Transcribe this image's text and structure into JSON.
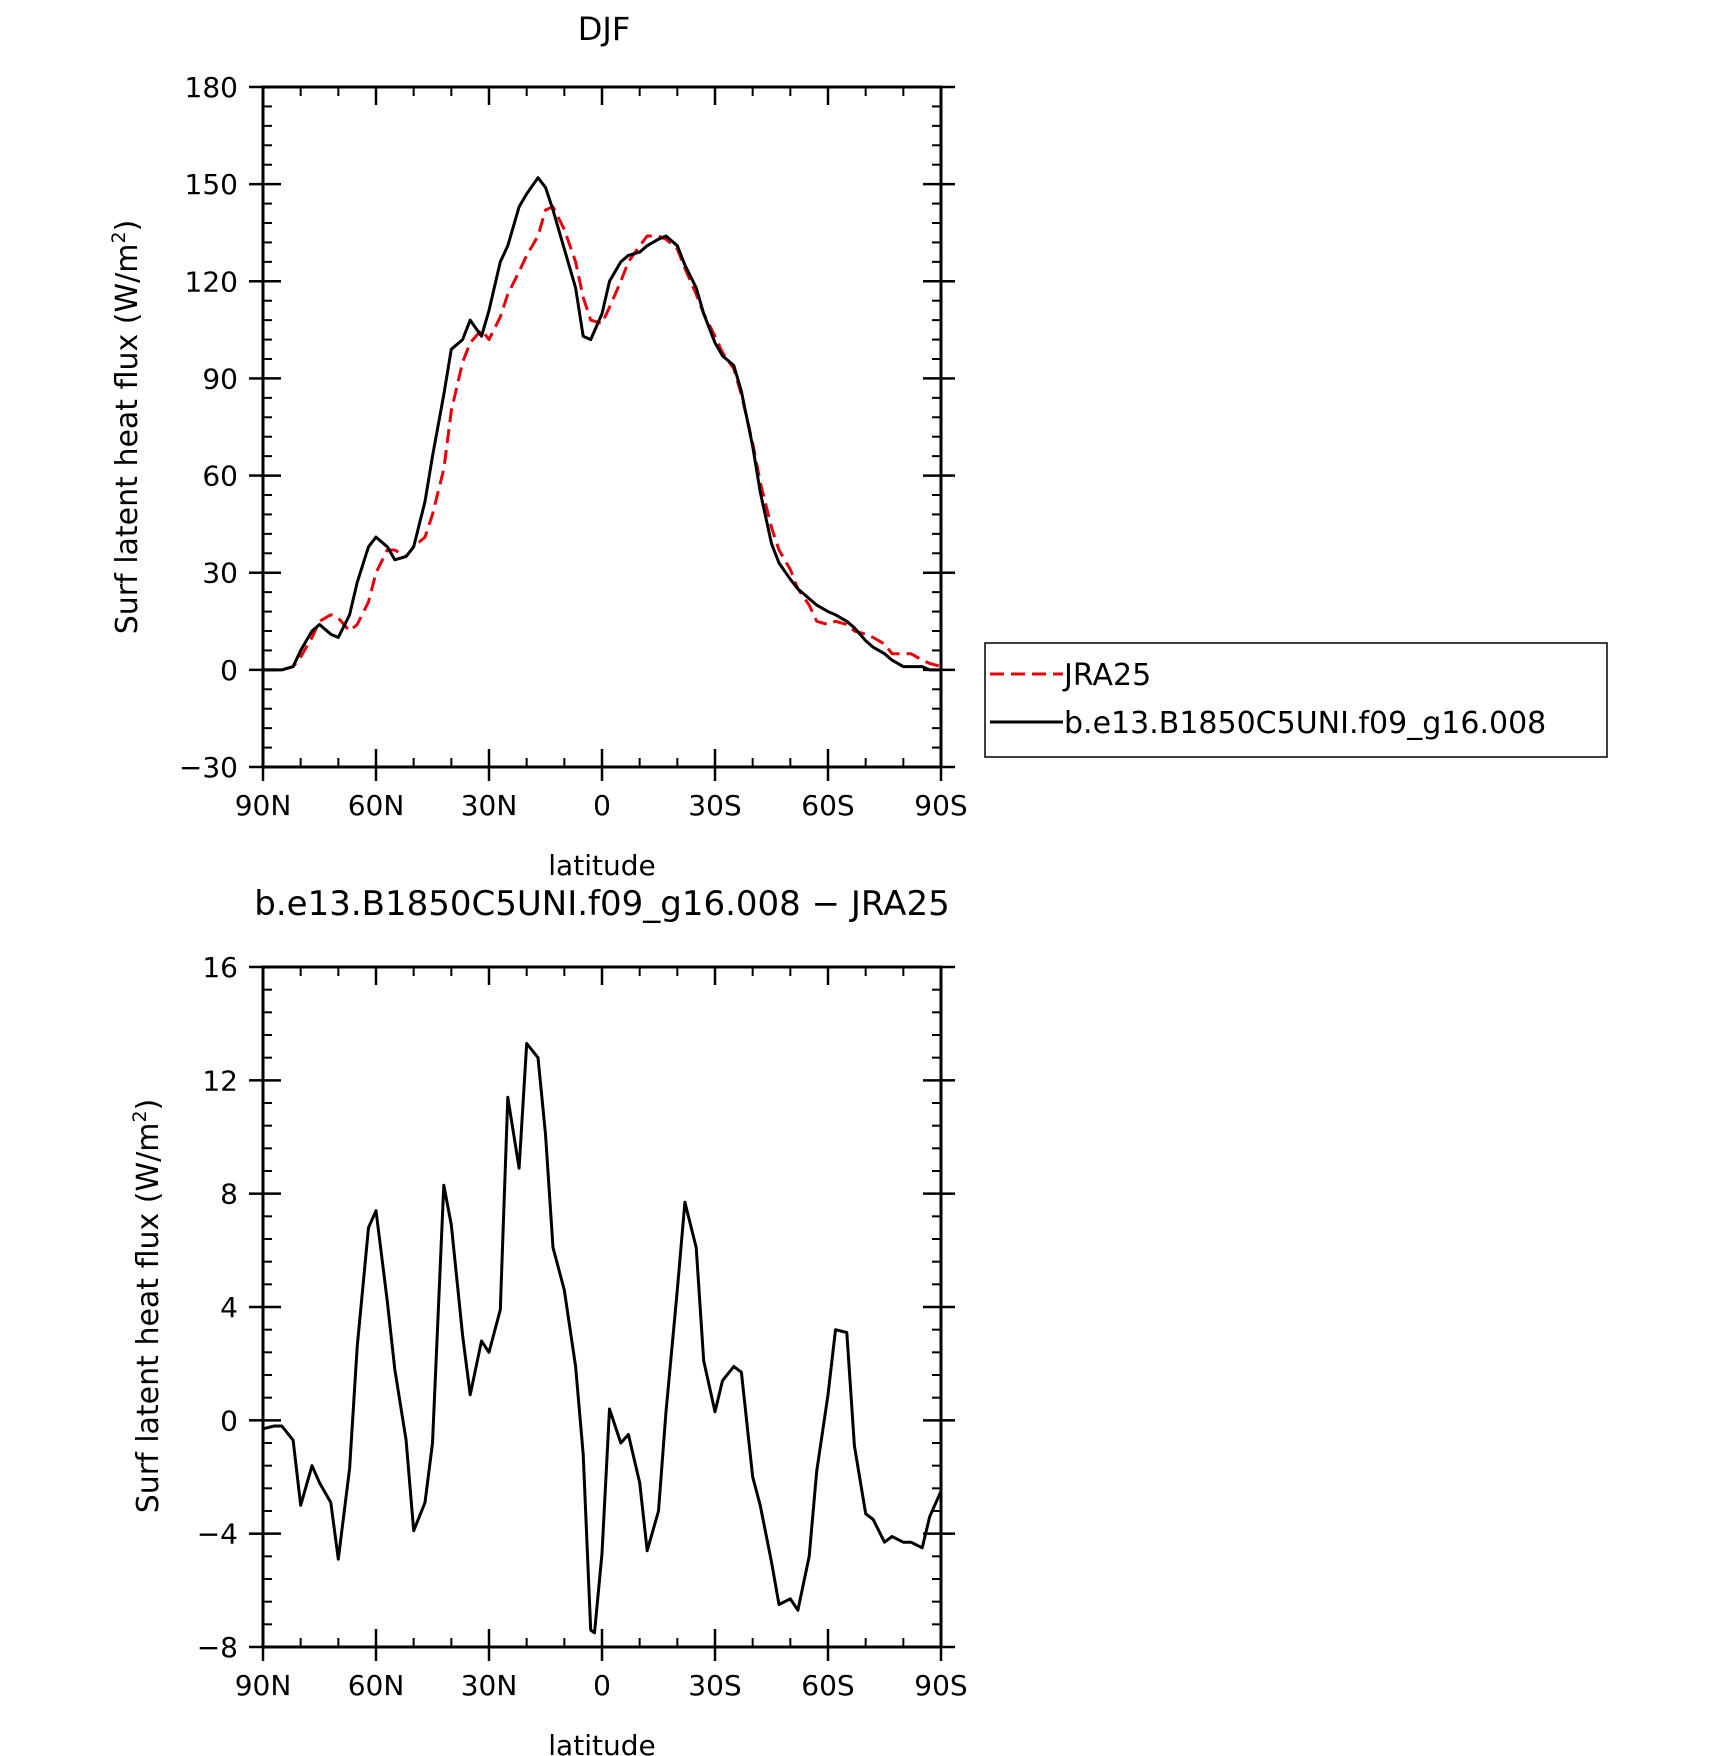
{
  "chart_data": [
    {
      "type": "line",
      "title": "DJF",
      "xlabel": "latitude",
      "ylabel": "Surf latent heat flux (W/m",
      "ylabel_sup": "2",
      "ylabel_close": ")",
      "xlim": [
        -90,
        90
      ],
      "ylim": [
        -30,
        180
      ],
      "x_direction": "north-to-south (left = 90N, right = 90S)",
      "xticks": [
        -90,
        -60,
        -30,
        0,
        30,
        60,
        90
      ],
      "xtick_labels": [
        "90N",
        "60N",
        "30N",
        "0",
        "30S",
        "60S",
        "90S"
      ],
      "yticks": [
        -30,
        0,
        30,
        60,
        90,
        120,
        150,
        180
      ],
      "ytick_labels": [
        "−30",
        "0",
        "30",
        "60",
        "90",
        "120",
        "150",
        "180"
      ],
      "grid": false,
      "legend_position": "right of plot, outside",
      "series": [
        {
          "name": "JRA25",
          "color": "#e8000b",
          "style": "dashed",
          "x": [
            -90,
            -87,
            -85,
            -82,
            -80,
            -77,
            -75,
            -72,
            -70,
            -67,
            -65,
            -62,
            -60,
            -57,
            -55,
            -52,
            -50,
            -47,
            -45,
            -42,
            -40,
            -37,
            -35,
            -32,
            -30,
            -27,
            -25,
            -22,
            -20,
            -17,
            -15,
            -13,
            -10,
            -7,
            -5,
            -3,
            0,
            2,
            5,
            7,
            10,
            12,
            15,
            17,
            20,
            22,
            25,
            27,
            30,
            32,
            35,
            37,
            40,
            42,
            45,
            47,
            50,
            52,
            55,
            57,
            60,
            62,
            65,
            67,
            70,
            72,
            75,
            77,
            80,
            82,
            85,
            87,
            90
          ],
          "y": [
            0,
            0,
            0,
            1,
            4,
            10,
            15,
            17,
            16,
            12,
            14,
            21,
            30,
            37,
            37,
            35,
            38,
            41,
            48,
            62,
            80,
            95,
            101,
            105,
            102,
            109,
            116,
            123,
            128,
            134,
            142,
            143,
            136,
            126,
            115,
            108,
            107,
            112,
            120,
            126,
            131,
            134,
            134,
            133,
            130,
            124,
            116,
            110,
            103,
            98,
            93,
            85,
            70,
            58,
            44,
            37,
            31,
            25,
            20,
            15,
            14,
            15,
            14,
            12,
            11,
            10,
            8,
            5,
            5,
            5,
            3,
            2,
            1
          ]
        },
        {
          "name": "b.e13.B1850C5UNI.f09_g16.008",
          "color": "#000000",
          "style": "solid",
          "x": [
            -90,
            -87,
            -85,
            -82,
            -80,
            -77,
            -75,
            -72,
            -70,
            -67,
            -65,
            -62,
            -60,
            -57,
            -55,
            -52,
            -50,
            -47,
            -45,
            -42,
            -40,
            -37,
            -35,
            -32,
            -30,
            -27,
            -25,
            -22,
            -20,
            -17,
            -15,
            -13,
            -10,
            -7,
            -5,
            -3,
            0,
            2,
            5,
            7,
            10,
            12,
            15,
            17,
            20,
            22,
            25,
            27,
            30,
            32,
            35,
            37,
            40,
            42,
            45,
            47,
            50,
            52,
            55,
            57,
            60,
            62,
            65,
            67,
            70,
            72,
            75,
            77,
            80,
            82,
            85,
            87,
            90
          ],
          "y": [
            0,
            0,
            0,
            1,
            6,
            12,
            14,
            11,
            10,
            17,
            27,
            38,
            41,
            38,
            34,
            35,
            38,
            52,
            66,
            85,
            99,
            102,
            108,
            103,
            111,
            126,
            131,
            143,
            147,
            152,
            149,
            142,
            130,
            118,
            103,
            102,
            110,
            120,
            126,
            128,
            129,
            131,
            133,
            134,
            131,
            125,
            118,
            110,
            101,
            97,
            94,
            86,
            69,
            55,
            39,
            33,
            28,
            25,
            22,
            20,
            18,
            17,
            15,
            13,
            9,
            7,
            5,
            3,
            1,
            1,
            1,
            0,
            0
          ]
        }
      ]
    },
    {
      "type": "line",
      "title": "b.e13.B1850C5UNI.f09_g16.008 − JRA25",
      "xlabel": "latitude",
      "ylabel": "Surf latent heat flux (W/m",
      "ylabel_sup": "2",
      "ylabel_close": ")",
      "xlim": [
        -90,
        90
      ],
      "ylim": [
        -8,
        16
      ],
      "x_direction": "north-to-south (left = 90N, right = 90S)",
      "xticks": [
        -90,
        -60,
        -30,
        0,
        30,
        60,
        90
      ],
      "xtick_labels": [
        "90N",
        "60N",
        "30N",
        "0",
        "30S",
        "60S",
        "90S"
      ],
      "yticks": [
        -8,
        -4,
        0,
        4,
        8,
        12,
        16
      ],
      "ytick_labels": [
        "−8",
        "−4",
        "0",
        "4",
        "8",
        "12",
        "16"
      ],
      "grid": false,
      "series": [
        {
          "color": "#000000",
          "style": "solid",
          "x": [
            -90,
            -87,
            -85,
            -82,
            -80,
            -77,
            -75,
            -72,
            -70,
            -67,
            -65,
            -62,
            -60,
            -57,
            -55,
            -52,
            -50,
            -47,
            -45,
            -42,
            -40,
            -37,
            -35,
            -32,
            -30,
            -27,
            -25,
            -22,
            -20,
            -17,
            -15,
            -13,
            -10,
            -7,
            -5,
            -3,
            -2,
            0,
            2,
            5,
            7,
            10,
            12,
            15,
            17,
            20,
            22,
            25,
            27,
            30,
            32,
            35,
            37,
            40,
            42,
            45,
            47,
            50,
            52,
            55,
            57,
            60,
            62,
            65,
            67,
            70,
            72,
            75,
            77,
            80,
            82,
            85,
            87,
            90
          ],
          "y": [
            -0.3,
            -0.2,
            -0.2,
            -0.7,
            -3.0,
            -1.6,
            -2.2,
            -2.9,
            -4.9,
            -1.7,
            2.6,
            6.8,
            7.4,
            4.2,
            1.8,
            -0.7,
            -3.9,
            -2.9,
            -0.8,
            8.3,
            6.9,
            3.0,
            0.9,
            2.8,
            2.4,
            3.9,
            11.4,
            8.9,
            13.3,
            12.8,
            10.1,
            6.1,
            4.6,
            1.9,
            -1.2,
            -7.4,
            -7.5,
            -4.7,
            0.4,
            -0.8,
            -0.5,
            -2.2,
            -4.6,
            -3.2,
            0.3,
            4.6,
            7.7,
            6.1,
            2.1,
            0.3,
            1.4,
            1.9,
            1.7,
            -2.0,
            -3.0,
            -5.0,
            -6.5,
            -6.3,
            -6.7,
            -4.8,
            -1.8,
            0.9,
            3.2,
            3.1,
            -0.9,
            -3.3,
            -3.5,
            -4.3,
            -4.1,
            -4.3,
            -4.3,
            -4.5,
            -3.4,
            -2.5
          ]
        }
      ]
    }
  ]
}
